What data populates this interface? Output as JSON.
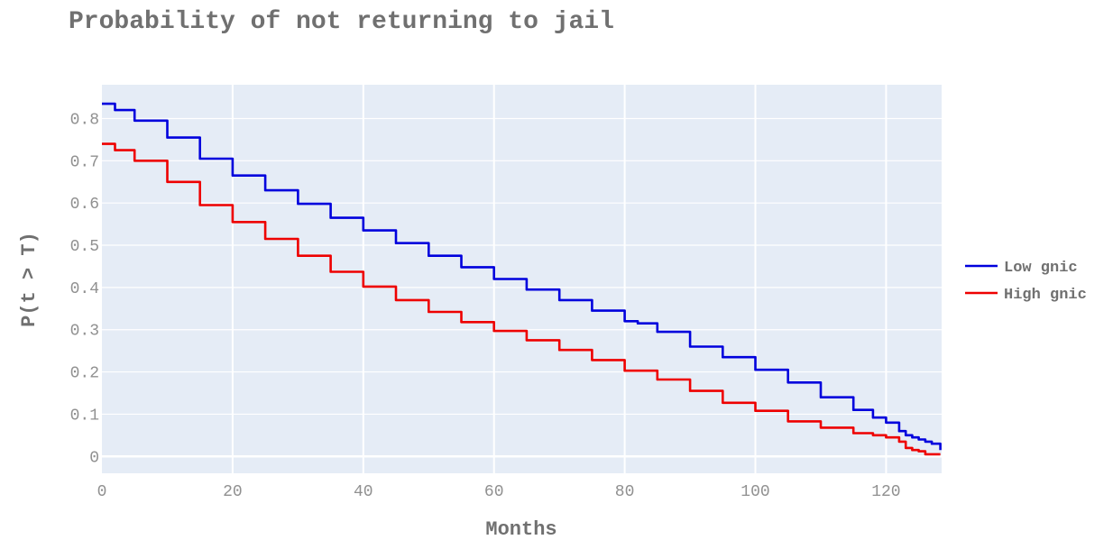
{
  "chart_data": {
    "type": "line",
    "title": "Probability of not returning to jail",
    "xlabel": "Months",
    "ylabel": "P(t > T)",
    "xlim": [
      0,
      128.5
    ],
    "ylim": [
      -0.04,
      0.88
    ],
    "x_ticks": [
      0,
      20,
      40,
      60,
      80,
      100,
      120
    ],
    "y_ticks": [
      0,
      0.1,
      0.2,
      0.3,
      0.4,
      0.5,
      0.6,
      0.7,
      0.8
    ],
    "y_tick_labels": [
      "0",
      "0.1",
      "0.2",
      "0.3",
      "0.4",
      "0.5",
      "0.6",
      "0.7",
      "0.8"
    ],
    "grid": true,
    "legend_position": "right",
    "plot_background": "#e5ecf6",
    "series": [
      {
        "name": "Low gnic",
        "color": "#0000dd",
        "x": [
          0,
          2,
          5,
          10,
          15,
          20,
          25,
          30,
          35,
          40,
          45,
          50,
          55,
          60,
          65,
          70,
          75,
          80,
          82,
          85,
          90,
          95,
          100,
          105,
          110,
          115,
          118,
          120,
          122,
          123,
          124,
          125,
          126,
          127,
          127.5,
          128,
          128.3
        ],
        "y": [
          0.835,
          0.82,
          0.795,
          0.755,
          0.705,
          0.665,
          0.63,
          0.598,
          0.565,
          0.535,
          0.505,
          0.475,
          0.448,
          0.42,
          0.395,
          0.37,
          0.345,
          0.32,
          0.315,
          0.295,
          0.26,
          0.235,
          0.205,
          0.175,
          0.14,
          0.11,
          0.092,
          0.08,
          0.06,
          0.05,
          0.045,
          0.04,
          0.035,
          0.03,
          0.03,
          0.03,
          0.015
        ]
      },
      {
        "name": "High gnic",
        "color": "#ee0000",
        "x": [
          0,
          2,
          5,
          10,
          15,
          20,
          25,
          30,
          35,
          40,
          45,
          50,
          55,
          60,
          65,
          70,
          75,
          80,
          85,
          90,
          95,
          100,
          105,
          110,
          115,
          118,
          120,
          122,
          123,
          124,
          125,
          126,
          127,
          128,
          128.3
        ],
        "y": [
          0.74,
          0.725,
          0.7,
          0.65,
          0.595,
          0.555,
          0.515,
          0.475,
          0.437,
          0.402,
          0.37,
          0.342,
          0.318,
          0.297,
          0.275,
          0.252,
          0.228,
          0.203,
          0.182,
          0.155,
          0.127,
          0.108,
          0.083,
          0.068,
          0.055,
          0.05,
          0.045,
          0.035,
          0.02,
          0.015,
          0.012,
          0.005,
          0.005,
          0.005,
          0.005
        ]
      }
    ]
  }
}
